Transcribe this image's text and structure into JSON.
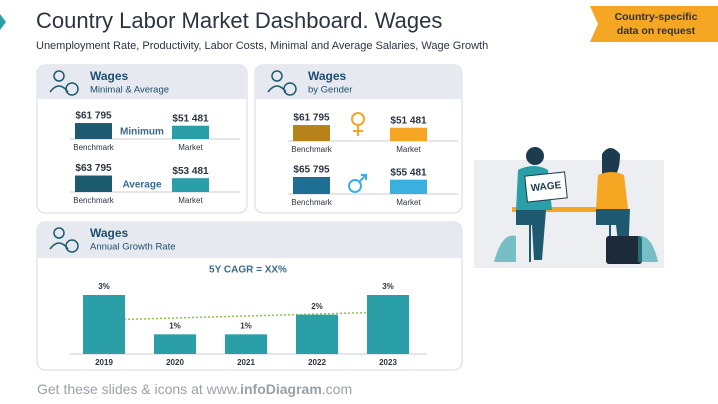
{
  "header": {
    "title": "Country Labor Market Dashboard. Wages",
    "subtitle": "Unemployment Rate, Productivity, Labor Costs, Minimal and Average Salaries, Wage Growth",
    "badge": [
      "Country-specific",
      "data on request"
    ]
  },
  "chart_data": [
    {
      "type": "pair",
      "title": "Wages",
      "subtitle": "Minimal & Average",
      "groups": [
        {
          "label": "Minimum",
          "categories": [
            "Benchmark",
            "Market"
          ],
          "values": [
            61795,
            51481
          ],
          "value_labels": [
            "$61 795",
            "$51 481"
          ],
          "colors": [
            "#1d5a70",
            "#2a9fa8"
          ]
        },
        {
          "label": "Average",
          "categories": [
            "Benchmark",
            "Market"
          ],
          "values": [
            63795,
            53481
          ],
          "value_labels": [
            "$63 795",
            "$53 481"
          ],
          "colors": [
            "#1d5a70",
            "#2a9fa8"
          ]
        }
      ]
    },
    {
      "type": "pair",
      "title": "Wages",
      "subtitle": "by Gender",
      "groups": [
        {
          "categories": [
            "Benchmark",
            "Market"
          ],
          "values": [
            61795,
            51481
          ],
          "value_labels": [
            "$61 795",
            "$51 481"
          ],
          "colors": [
            "#b8821a",
            "#f5a623"
          ]
        },
        {
          "categories": [
            "Benchmark",
            "Market"
          ],
          "values": [
            65795,
            55481
          ],
          "value_labels": [
            "$65 795",
            "$55 481"
          ],
          "colors": [
            "#1f6f95",
            "#3ab0e0"
          ]
        }
      ]
    },
    {
      "type": "bar",
      "title": "Wages",
      "subtitle": "Annual Growth Rate",
      "annotation": "5Y CAGR = XX%",
      "categories": [
        "2019",
        "2020",
        "2021",
        "2022",
        "2023"
      ],
      "values": [
        3,
        1,
        1,
        2,
        3
      ],
      "value_labels": [
        "3%",
        "1%",
        "1%",
        "2%",
        "3%"
      ],
      "color": "#2a9fa8"
    }
  ],
  "illustration": {
    "sign": "WAGE"
  },
  "footer": {
    "prefix": "Get these slides & icons at www.",
    "brand": "infoDiagram",
    "suffix": ".com"
  }
}
